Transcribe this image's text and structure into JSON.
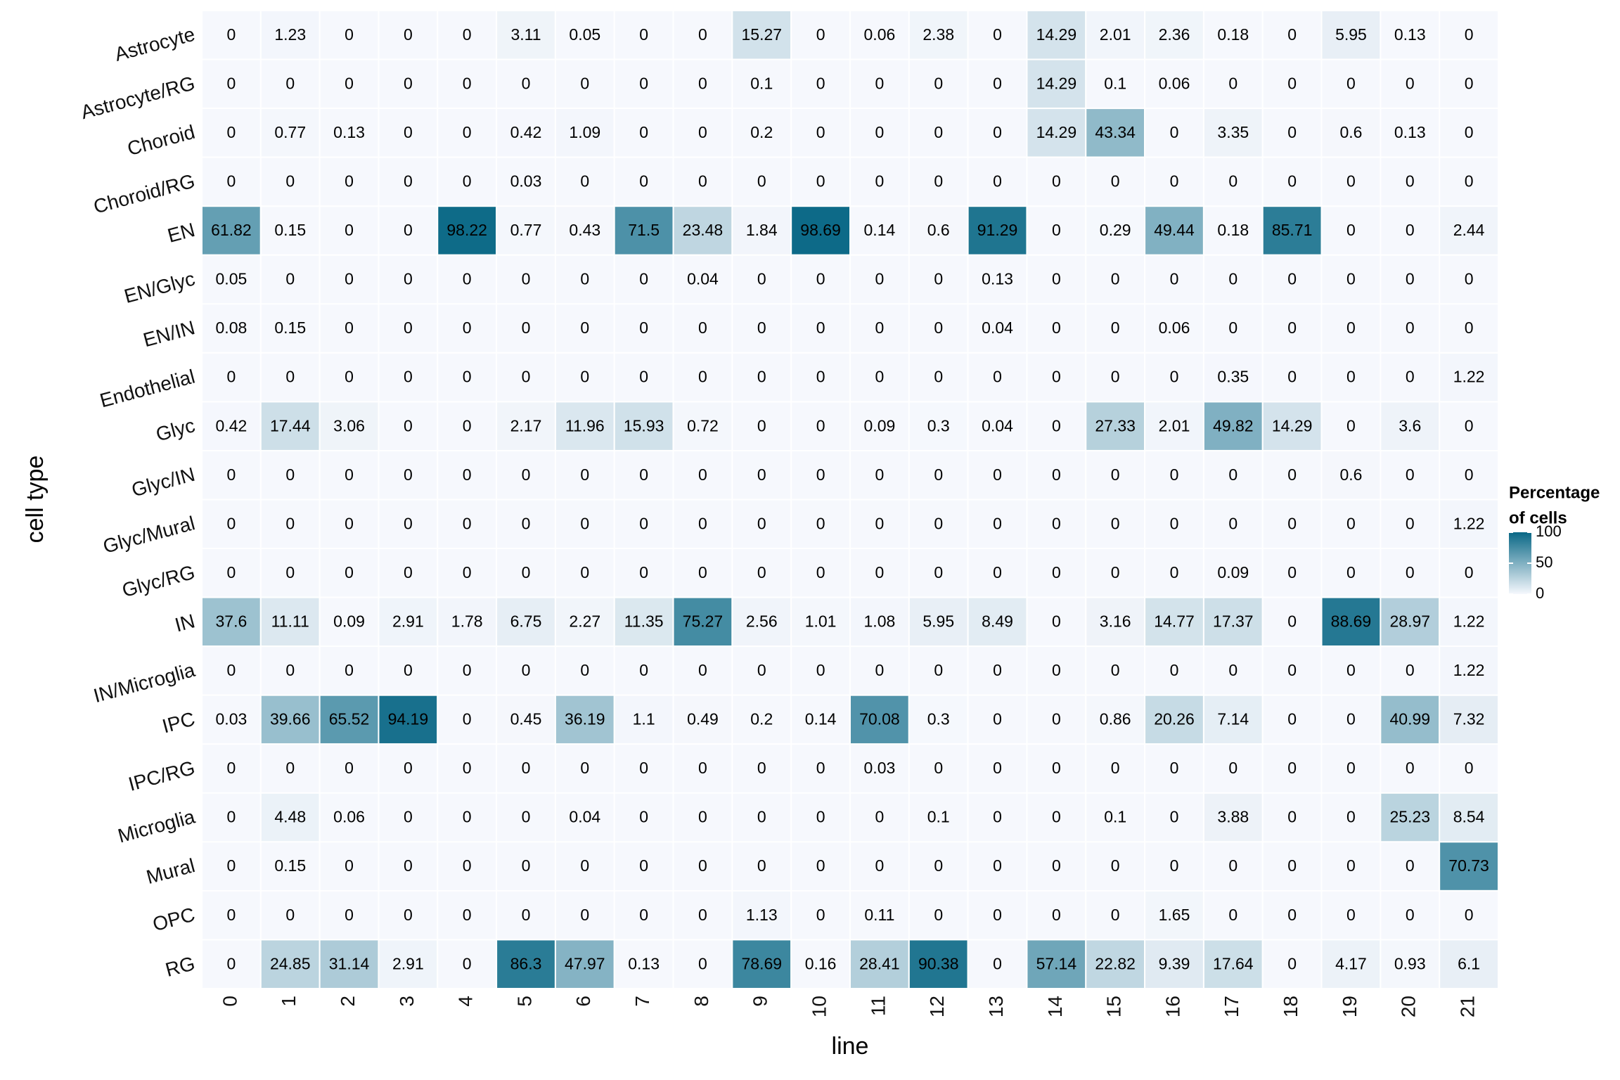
{
  "chart_data": {
    "type": "heatmap",
    "x_label": "line",
    "y_label": "cell type",
    "x": [
      "0",
      "1",
      "2",
      "3",
      "4",
      "5",
      "6",
      "7",
      "8",
      "9",
      "10",
      "11",
      "12",
      "13",
      "14",
      "15",
      "16",
      "17",
      "18",
      "19",
      "20",
      "21"
    ],
    "y": [
      "Astrocyte",
      "Astrocyte/RG",
      "Choroid",
      "Choroid/RG",
      "EN",
      "EN/Glyc",
      "EN/IN",
      "Endothelial",
      "Glyc",
      "Glyc/IN",
      "Glyc/Mural",
      "Glyc/RG",
      "IN",
      "IN/Microglia",
      "IPC",
      "IPC/RG",
      "Microglia",
      "Mural",
      "OPC",
      "RG"
    ],
    "values": [
      [
        0,
        1.23,
        0,
        0,
        0,
        3.11,
        0.05,
        0,
        0,
        15.27,
        0,
        0.06,
        2.38,
        0,
        14.29,
        2.01,
        2.36,
        0.18,
        0,
        5.95,
        0.13,
        0
      ],
      [
        0,
        0,
        0,
        0,
        0,
        0,
        0,
        0,
        0,
        0.1,
        0,
        0,
        0,
        0,
        14.29,
        0.1,
        0.06,
        0,
        0,
        0,
        0,
        0
      ],
      [
        0,
        0.77,
        0.13,
        0,
        0,
        0.42,
        1.09,
        0,
        0,
        0.2,
        0,
        0,
        0,
        0,
        14.29,
        43.34,
        0,
        3.35,
        0,
        0.6,
        0.13,
        0
      ],
      [
        0,
        0,
        0,
        0,
        0,
        0.03,
        0,
        0,
        0,
        0,
        0,
        0,
        0,
        0,
        0,
        0,
        0,
        0,
        0,
        0,
        0,
        0
      ],
      [
        61.82,
        0.15,
        0,
        0,
        98.22,
        0.77,
        0.43,
        71.5,
        23.48,
        1.84,
        98.69,
        0.14,
        0.6,
        91.29,
        0,
        0.29,
        49.44,
        0.18,
        85.71,
        0,
        0,
        2.44
      ],
      [
        0.05,
        0,
        0,
        0,
        0,
        0,
        0,
        0,
        0.04,
        0,
        0,
        0,
        0,
        0.13,
        0,
        0,
        0,
        0,
        0,
        0,
        0,
        0
      ],
      [
        0.08,
        0.15,
        0,
        0,
        0,
        0,
        0,
        0,
        0,
        0,
        0,
        0,
        0,
        0.04,
        0,
        0,
        0.06,
        0,
        0,
        0,
        0,
        0
      ],
      [
        0,
        0,
        0,
        0,
        0,
        0,
        0,
        0,
        0,
        0,
        0,
        0,
        0,
        0,
        0,
        0,
        0,
        0.35,
        0,
        0,
        0,
        1.22
      ],
      [
        0.42,
        17.44,
        3.06,
        0,
        0,
        2.17,
        11.96,
        15.93,
        0.72,
        0,
        0,
        0.09,
        0.3,
        0.04,
        0,
        27.33,
        2.01,
        49.82,
        14.29,
        0,
        3.6,
        0
      ],
      [
        0,
        0,
        0,
        0,
        0,
        0,
        0,
        0,
        0,
        0,
        0,
        0,
        0,
        0,
        0,
        0,
        0,
        0,
        0,
        0.6,
        0,
        0
      ],
      [
        0,
        0,
        0,
        0,
        0,
        0,
        0,
        0,
        0,
        0,
        0,
        0,
        0,
        0,
        0,
        0,
        0,
        0,
        0,
        0,
        0,
        1.22
      ],
      [
        0,
        0,
        0,
        0,
        0,
        0,
        0,
        0,
        0,
        0,
        0,
        0,
        0,
        0,
        0,
        0,
        0,
        0.09,
        0,
        0,
        0,
        0
      ],
      [
        37.6,
        11.11,
        0.09,
        2.91,
        1.78,
        6.75,
        2.27,
        11.35,
        75.27,
        2.56,
        1.01,
        1.08,
        5.95,
        8.49,
        0,
        3.16,
        14.77,
        17.37,
        0,
        88.69,
        28.97,
        1.22
      ],
      [
        0,
        0,
        0,
        0,
        0,
        0,
        0,
        0,
        0,
        0,
        0,
        0,
        0,
        0,
        0,
        0,
        0,
        0,
        0,
        0,
        0,
        1.22
      ],
      [
        0.03,
        39.66,
        65.52,
        94.19,
        0,
        0.45,
        36.19,
        1.1,
        0.49,
        0.2,
        0.14,
        70.08,
        0.3,
        0,
        0,
        0.86,
        20.26,
        7.14,
        0,
        0,
        40.99,
        7.32
      ],
      [
        0,
        0,
        0,
        0,
        0,
        0,
        0,
        0,
        0,
        0,
        0,
        0.03,
        0,
        0,
        0,
        0,
        0,
        0,
        0,
        0,
        0,
        0
      ],
      [
        0,
        4.48,
        0.06,
        0,
        0,
        0,
        0.04,
        0,
        0,
        0,
        0,
        0,
        0.1,
        0,
        0,
        0.1,
        0,
        3.88,
        0,
        0,
        25.23,
        8.54
      ],
      [
        0,
        0.15,
        0,
        0,
        0,
        0,
        0,
        0,
        0,
        0,
        0,
        0,
        0,
        0,
        0,
        0,
        0,
        0,
        0,
        0,
        0,
        70.73
      ],
      [
        0,
        0,
        0,
        0,
        0,
        0,
        0,
        0,
        0,
        1.13,
        0,
        0.11,
        0,
        0,
        0,
        0,
        1.65,
        0,
        0,
        0,
        0,
        0
      ],
      [
        0,
        24.85,
        31.14,
        2.91,
        0,
        86.3,
        47.97,
        0.13,
        0,
        78.69,
        0.16,
        28.41,
        90.38,
        0,
        57.14,
        22.82,
        9.39,
        17.64,
        0,
        4.17,
        0.93,
        6.1
      ]
    ],
    "colors": [
      "#f6f8fd",
      "#0a6886"
    ],
    "zlim": [
      0,
      100
    ],
    "legend_title": [
      "Percentage",
      "of cells"
    ],
    "legend_ticks": [
      0,
      50,
      100
    ]
  }
}
